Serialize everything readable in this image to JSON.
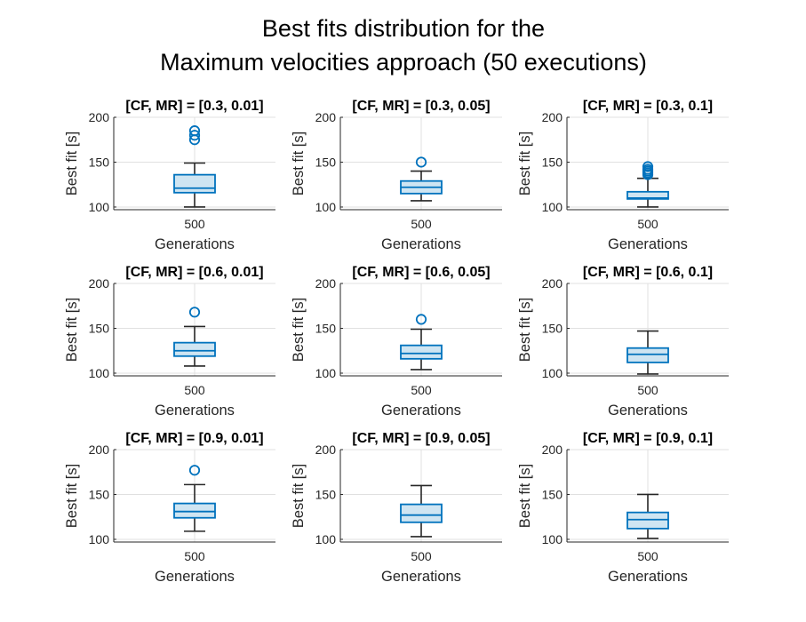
{
  "figure": {
    "title_line1": "Best fits distribution for the",
    "title_line2": "Maximum velocities approach (50 executions)"
  },
  "colors": {
    "box_edge": "#0072BD",
    "box_fill": "#CFE5F2",
    "whisker": "#262626",
    "grid": "#E0E0E0",
    "axis": "#262626"
  },
  "chart_data": [
    {
      "type": "box",
      "title": "[CF, MR] = [0.3, 0.01]",
      "xlabel": "Generations",
      "ylabel": "Best fit [s]",
      "categories": [
        "500"
      ],
      "ylim": [
        97,
        200
      ],
      "yticks": [
        100,
        150,
        200
      ],
      "grid": true,
      "box": {
        "whisker_low": 100,
        "q1": 116,
        "median": 121,
        "q3": 136,
        "whisker_high": 149,
        "outliers": [
          175,
          180,
          185
        ]
      }
    },
    {
      "type": "box",
      "title": "[CF, MR] = [0.3, 0.05]",
      "xlabel": "Generations",
      "ylabel": "Best fit [s]",
      "categories": [
        "500"
      ],
      "ylim": [
        97,
        200
      ],
      "yticks": [
        100,
        150,
        200
      ],
      "grid": true,
      "box": {
        "whisker_low": 107,
        "q1": 115,
        "median": 122,
        "q3": 129,
        "whisker_high": 140,
        "outliers": [
          150
        ]
      }
    },
    {
      "type": "box",
      "title": "[CF, MR] = [0.3, 0.1]",
      "xlabel": "Generations",
      "ylabel": "Best fit [s]",
      "categories": [
        "500"
      ],
      "ylim": [
        97,
        200
      ],
      "yticks": [
        100,
        150,
        200
      ],
      "grid": true,
      "box": {
        "whisker_low": 100,
        "q1": 109,
        "median": 110,
        "q3": 117,
        "whisker_high": 132,
        "outliers": [
          136,
          138,
          140,
          142,
          145
        ]
      }
    },
    {
      "type": "box",
      "title": "[CF, MR] = [0.6, 0.01]",
      "xlabel": "Generations",
      "ylabel": "Best fit [s]",
      "categories": [
        "500"
      ],
      "ylim": [
        97,
        200
      ],
      "yticks": [
        100,
        150,
        200
      ],
      "grid": true,
      "box": {
        "whisker_low": 108,
        "q1": 119,
        "median": 125,
        "q3": 134,
        "whisker_high": 152,
        "outliers": [
          168
        ]
      }
    },
    {
      "type": "box",
      "title": "[CF, MR] = [0.6, 0.05]",
      "xlabel": "Generations",
      "ylabel": "Best fit [s]",
      "categories": [
        "500"
      ],
      "ylim": [
        97,
        200
      ],
      "yticks": [
        100,
        150,
        200
      ],
      "grid": true,
      "box": {
        "whisker_low": 104,
        "q1": 116,
        "median": 122,
        "q3": 131,
        "whisker_high": 149,
        "outliers": [
          160
        ]
      }
    },
    {
      "type": "box",
      "title": "[CF, MR] = [0.6, 0.1]",
      "xlabel": "Generations",
      "ylabel": "Best fit [s]",
      "categories": [
        "500"
      ],
      "ylim": [
        97,
        200
      ],
      "yticks": [
        100,
        150,
        200
      ],
      "grid": true,
      "box": {
        "whisker_low": 99,
        "q1": 112,
        "median": 121,
        "q3": 128,
        "whisker_high": 147,
        "outliers": []
      }
    },
    {
      "type": "box",
      "title": "[CF, MR] = [0.9, 0.01]",
      "xlabel": "Generations",
      "ylabel": "Best fit [s]",
      "categories": [
        "500"
      ],
      "ylim": [
        97,
        200
      ],
      "yticks": [
        100,
        150,
        200
      ],
      "grid": true,
      "box": {
        "whisker_low": 109,
        "q1": 124,
        "median": 131,
        "q3": 140,
        "whisker_high": 161,
        "outliers": [
          177
        ]
      }
    },
    {
      "type": "box",
      "title": "[CF, MR] = [0.9, 0.05]",
      "xlabel": "Generations",
      "ylabel": "Best fit [s]",
      "categories": [
        "500"
      ],
      "ylim": [
        97,
        200
      ],
      "yticks": [
        100,
        150,
        200
      ],
      "grid": true,
      "box": {
        "whisker_low": 103,
        "q1": 119,
        "median": 127,
        "q3": 139,
        "whisker_high": 160,
        "outliers": []
      }
    },
    {
      "type": "box",
      "title": "[CF, MR] = [0.9, 0.1]",
      "xlabel": "Generations",
      "ylabel": "Best fit [s]",
      "categories": [
        "500"
      ],
      "ylim": [
        97,
        200
      ],
      "yticks": [
        100,
        150,
        200
      ],
      "grid": true,
      "box": {
        "whisker_low": 101,
        "q1": 112,
        "median": 122,
        "q3": 130,
        "whisker_high": 150,
        "outliers": []
      }
    }
  ]
}
